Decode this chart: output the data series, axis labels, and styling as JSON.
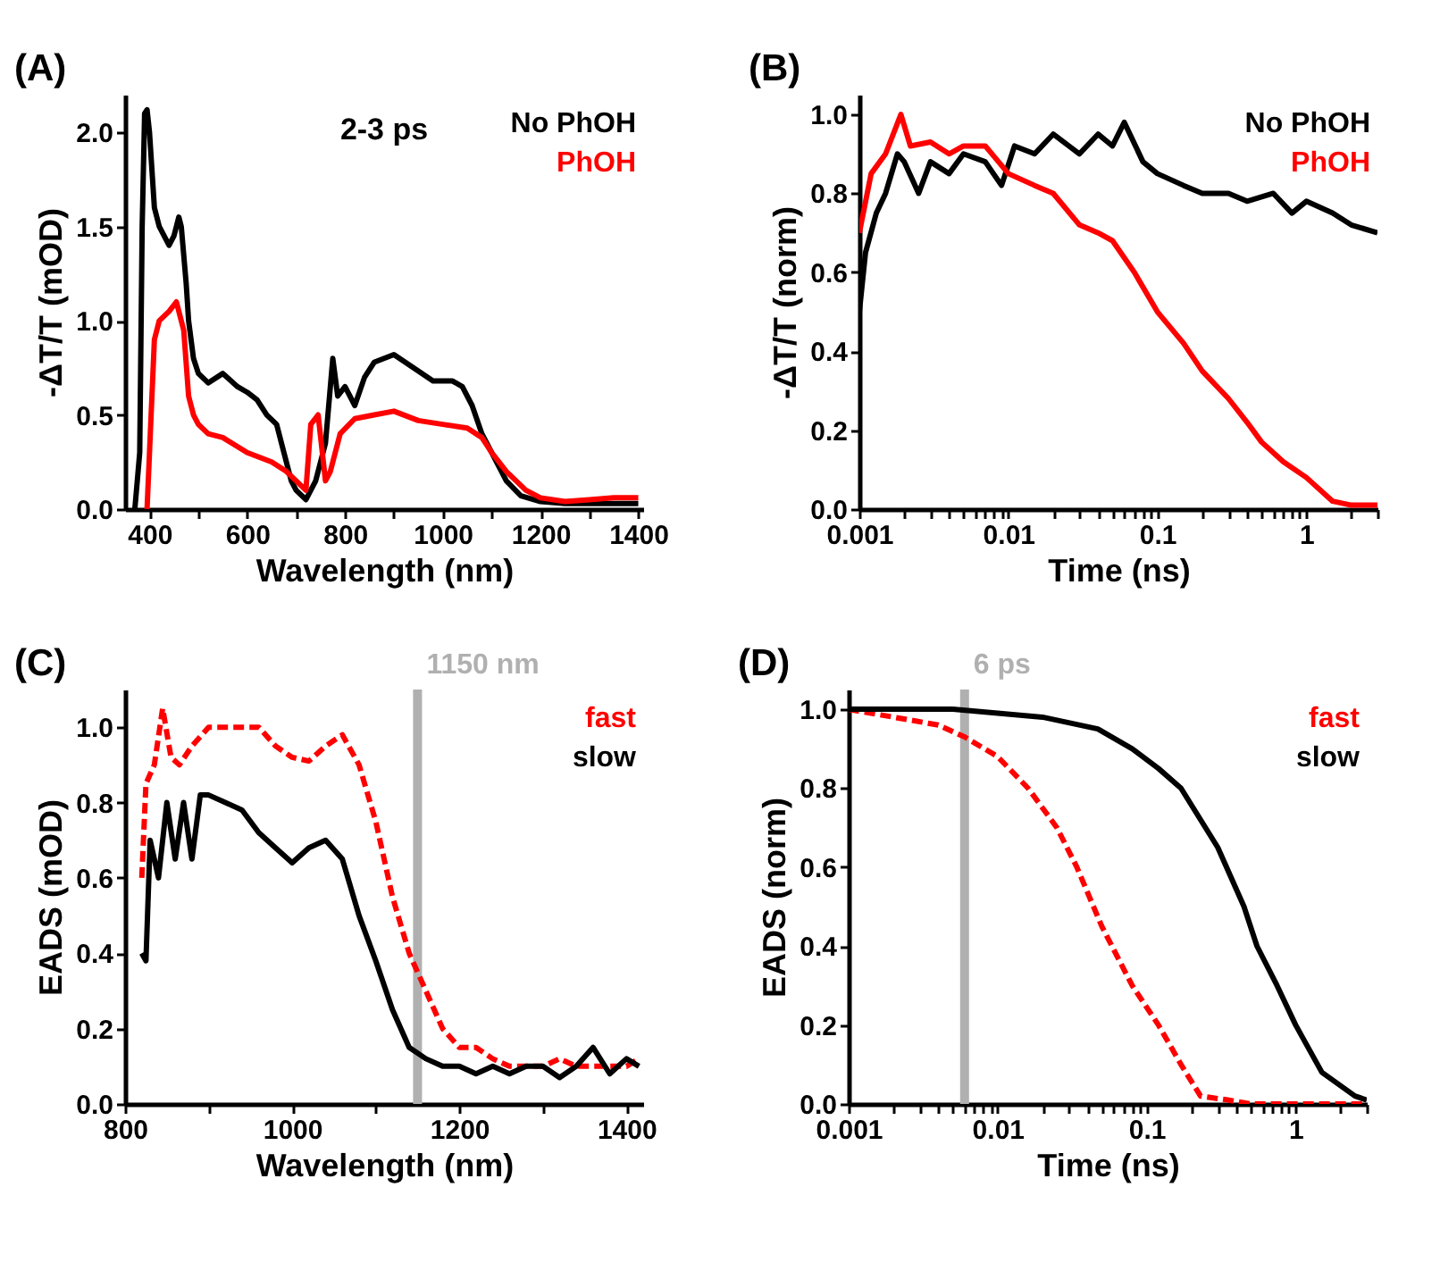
{
  "chart_data": [
    {
      "type": "line",
      "annotations": [
        "(A)",
        "2-3 ps"
      ],
      "xlabel": "Wavelength (nm)",
      "ylabel": "-ΔT/T (mOD)",
      "xlim": [
        350,
        1410
      ],
      "ylim": [
        0,
        2.2
      ],
      "xticks": [
        400,
        {
          "value": 500,
          "label": null
        },
        600,
        {
          "value": 700,
          "label": null
        },
        800,
        {
          "value": 900,
          "label": null
        },
        1000,
        {
          "value": 1100,
          "label": null
        },
        1200,
        {
          "value": 1300,
          "label": null
        },
        1400
      ],
      "yticks": [
        {
          "value": 0,
          "label": "0.0"
        },
        {
          "value": 0.5,
          "label": "0.5"
        },
        {
          "value": 1,
          "label": "1.0"
        },
        {
          "value": 1.5,
          "label": "1.5"
        },
        {
          "value": 2,
          "label": "2.0"
        }
      ],
      "series": [
        {
          "name": "No PhOH",
          "color": "#000000",
          "x": [
            370,
            380,
            385,
            390,
            395,
            400,
            410,
            420,
            430,
            440,
            450,
            460,
            465,
            475,
            480,
            490,
            500,
            520,
            550,
            580,
            600,
            620,
            640,
            660,
            675,
            690,
            700,
            720,
            740,
            760,
            775,
            785,
            800,
            820,
            840,
            860,
            900,
            940,
            980,
            1020,
            1040,
            1060,
            1080,
            1100,
            1130,
            1160,
            1200,
            1250,
            1300,
            1350,
            1400
          ],
          "values": [
            0,
            0.3,
            1.5,
            2.1,
            2.12,
            2.0,
            1.6,
            1.5,
            1.45,
            1.4,
            1.45,
            1.55,
            1.5,
            1.2,
            1.0,
            0.8,
            0.72,
            0.67,
            0.72,
            0.65,
            0.62,
            0.58,
            0.5,
            0.45,
            0.3,
            0.15,
            0.1,
            0.05,
            0.15,
            0.35,
            0.8,
            0.6,
            0.65,
            0.55,
            0.7,
            0.78,
            0.82,
            0.75,
            0.68,
            0.68,
            0.65,
            0.55,
            0.4,
            0.3,
            0.15,
            0.07,
            0.04,
            0.03,
            0.03,
            0.03,
            0.03
          ]
        },
        {
          "name": "PhOH",
          "color": "#ff0000",
          "x": [
            395,
            400,
            410,
            420,
            440,
            455,
            470,
            480,
            490,
            500,
            520,
            550,
            600,
            650,
            680,
            700,
            720,
            730,
            745,
            760,
            770,
            790,
            820,
            860,
            900,
            950,
            1000,
            1050,
            1080,
            1100,
            1130,
            1170,
            1200,
            1250,
            1300,
            1350,
            1400
          ],
          "values": [
            0,
            0.3,
            0.9,
            1.0,
            1.05,
            1.1,
            0.95,
            0.6,
            0.5,
            0.45,
            0.4,
            0.38,
            0.3,
            0.25,
            0.2,
            0.15,
            0.1,
            0.45,
            0.5,
            0.15,
            0.2,
            0.4,
            0.48,
            0.5,
            0.52,
            0.47,
            0.45,
            0.43,
            0.38,
            0.3,
            0.2,
            0.1,
            0.06,
            0.04,
            0.05,
            0.06,
            0.06
          ]
        }
      ]
    },
    {
      "type": "line",
      "annotations": [
        "(B)"
      ],
      "xlabel": "Time (ns)",
      "ylabel": "-ΔT/T (norm)",
      "log": "x",
      "xlim": [
        0.001,
        3
      ],
      "ylim": [
        0,
        1.05
      ],
      "xticks": [
        0.001,
        {
          "value": 0.002,
          "label": null
        },
        {
          "value": 0.003,
          "label": null
        },
        {
          "value": 0.004,
          "label": null
        },
        {
          "value": 0.005,
          "label": null
        },
        {
          "value": 0.006,
          "label": null
        },
        {
          "value": 0.007,
          "label": null
        },
        {
          "value": 0.008,
          "label": null
        },
        {
          "value": 0.009,
          "label": null
        },
        0.01,
        {
          "value": 0.02,
          "label": null
        },
        {
          "value": 0.03,
          "label": null
        },
        {
          "value": 0.04,
          "label": null
        },
        {
          "value": 0.05,
          "label": null
        },
        {
          "value": 0.06,
          "label": null
        },
        {
          "value": 0.07,
          "label": null
        },
        {
          "value": 0.08,
          "label": null
        },
        {
          "value": 0.09,
          "label": null
        },
        0.1,
        {
          "value": 0.2,
          "label": null
        },
        {
          "value": 0.3,
          "label": null
        },
        {
          "value": 0.4,
          "label": null
        },
        {
          "value": 0.5,
          "label": null
        },
        {
          "value": 0.6,
          "label": null
        },
        {
          "value": 0.7,
          "label": null
        },
        {
          "value": 0.8,
          "label": null
        },
        {
          "value": 0.9,
          "label": null
        },
        1,
        {
          "value": 2,
          "label": null
        },
        {
          "value": 3,
          "label": null
        }
      ],
      "yticks": [
        {
          "value": 0,
          "label": "0.0"
        },
        {
          "value": 0.2,
          "label": "0.2"
        },
        {
          "value": 0.4,
          "label": "0.4"
        },
        {
          "value": 0.6,
          "label": "0.6"
        },
        {
          "value": 0.8,
          "label": "0.8"
        },
        {
          "value": 1,
          "label": "1.0"
        }
      ],
      "series": [
        {
          "name": "No PhOH",
          "color": "#000000",
          "x": [
            0.001,
            0.0011,
            0.0013,
            0.0015,
            0.0018,
            0.002,
            0.0025,
            0.003,
            0.004,
            0.005,
            0.007,
            0.009,
            0.011,
            0.015,
            0.02,
            0.03,
            0.04,
            0.05,
            0.06,
            0.08,
            0.1,
            0.15,
            0.2,
            0.3,
            0.4,
            0.6,
            0.8,
            1,
            1.5,
            2,
            3
          ],
          "values": [
            0.5,
            0.65,
            0.75,
            0.8,
            0.9,
            0.88,
            0.8,
            0.88,
            0.85,
            0.9,
            0.88,
            0.82,
            0.92,
            0.9,
            0.95,
            0.9,
            0.95,
            0.92,
            0.98,
            0.88,
            0.85,
            0.82,
            0.8,
            0.8,
            0.78,
            0.8,
            0.75,
            0.78,
            0.75,
            0.72,
            0.7
          ]
        },
        {
          "name": "PhOH",
          "color": "#ff0000",
          "x": [
            0.001,
            0.0012,
            0.0015,
            0.0019,
            0.0022,
            0.003,
            0.004,
            0.005,
            0.007,
            0.01,
            0.015,
            0.02,
            0.03,
            0.04,
            0.05,
            0.07,
            0.1,
            0.15,
            0.2,
            0.3,
            0.4,
            0.5,
            0.7,
            1,
            1.5,
            2,
            3
          ],
          "values": [
            0.7,
            0.85,
            0.9,
            1.0,
            0.92,
            0.93,
            0.9,
            0.92,
            0.92,
            0.85,
            0.82,
            0.8,
            0.72,
            0.7,
            0.68,
            0.6,
            0.5,
            0.42,
            0.35,
            0.28,
            0.22,
            0.17,
            0.12,
            0.08,
            0.02,
            0.01,
            0.01
          ]
        }
      ]
    },
    {
      "type": "line",
      "annotations": [
        "(C)"
      ],
      "xlabel": "Wavelength (nm)",
      "ylabel": "EADS (mOD)",
      "xlim": [
        800,
        1420
      ],
      "ylim": [
        0,
        1.1
      ],
      "xticks": [
        800,
        {
          "value": 900,
          "label": null
        },
        1000,
        {
          "value": 1100,
          "label": null
        },
        1200,
        {
          "value": 1300,
          "label": null
        },
        1400
      ],
      "yticks": [
        {
          "value": 0,
          "label": "0.0"
        },
        {
          "value": 0.2,
          "label": "0.2"
        },
        {
          "value": 0.4,
          "label": "0.4"
        },
        {
          "value": 0.6,
          "label": "0.6"
        },
        {
          "value": 0.8,
          "label": "0.8"
        },
        {
          "value": 1,
          "label": "1.0"
        }
      ],
      "ref_lines": [
        {
          "axis": "x",
          "value": 1150,
          "label": "1150 nm",
          "color": "#b0b0b0"
        }
      ],
      "series": [
        {
          "name": "fast",
          "color": "#ff0000",
          "line_style": "dashed",
          "x": [
            820,
            825,
            835,
            845,
            855,
            865,
            880,
            900,
            940,
            960,
            980,
            1000,
            1020,
            1040,
            1060,
            1080,
            1100,
            1120,
            1140,
            1160,
            1180,
            1200,
            1220,
            1240,
            1260,
            1280,
            1300,
            1320,
            1340,
            1360,
            1380,
            1400,
            1415
          ],
          "values": [
            0.6,
            0.85,
            0.9,
            1.05,
            0.92,
            0.9,
            0.95,
            1.0,
            1.0,
            1.0,
            0.95,
            0.92,
            0.91,
            0.95,
            0.98,
            0.9,
            0.75,
            0.55,
            0.4,
            0.3,
            0.2,
            0.15,
            0.15,
            0.12,
            0.1,
            0.1,
            0.1,
            0.12,
            0.1,
            0.1,
            0.1,
            0.1,
            0.12
          ]
        },
        {
          "name": "slow",
          "color": "#000000",
          "line_style": "solid",
          "x": [
            820,
            825,
            830,
            840,
            850,
            860,
            870,
            880,
            890,
            900,
            920,
            940,
            960,
            980,
            1000,
            1020,
            1040,
            1060,
            1080,
            1100,
            1120,
            1140,
            1160,
            1180,
            1200,
            1220,
            1240,
            1260,
            1280,
            1300,
            1320,
            1340,
            1360,
            1380,
            1400,
            1415
          ],
          "values": [
            0.4,
            0.38,
            0.7,
            0.6,
            0.8,
            0.65,
            0.8,
            0.65,
            0.82,
            0.82,
            0.8,
            0.78,
            0.72,
            0.68,
            0.64,
            0.68,
            0.7,
            0.65,
            0.5,
            0.38,
            0.25,
            0.15,
            0.12,
            0.1,
            0.1,
            0.08,
            0.1,
            0.08,
            0.1,
            0.1,
            0.07,
            0.1,
            0.15,
            0.08,
            0.12,
            0.1
          ]
        }
      ]
    },
    {
      "type": "line",
      "annotations": [
        "(D)"
      ],
      "xlabel": "Time (ns)",
      "ylabel": "EADS (norm)",
      "log": "x",
      "xlim": [
        0.001,
        3
      ],
      "ylim": [
        0,
        1.05
      ],
      "xticks": [
        0.001,
        {
          "value": 0.002,
          "label": null
        },
        {
          "value": 0.003,
          "label": null
        },
        {
          "value": 0.004,
          "label": null
        },
        {
          "value": 0.005,
          "label": null
        },
        {
          "value": 0.006,
          "label": null
        },
        {
          "value": 0.007,
          "label": null
        },
        {
          "value": 0.008,
          "label": null
        },
        {
          "value": 0.009,
          "label": null
        },
        0.01,
        {
          "value": 0.02,
          "label": null
        },
        {
          "value": 0.03,
          "label": null
        },
        {
          "value": 0.04,
          "label": null
        },
        {
          "value": 0.05,
          "label": null
        },
        {
          "value": 0.06,
          "label": null
        },
        {
          "value": 0.07,
          "label": null
        },
        {
          "value": 0.08,
          "label": null
        },
        {
          "value": 0.09,
          "label": null
        },
        0.1,
        {
          "value": 0.2,
          "label": null
        },
        {
          "value": 0.3,
          "label": null
        },
        {
          "value": 0.4,
          "label": null
        },
        {
          "value": 0.5,
          "label": null
        },
        {
          "value": 0.6,
          "label": null
        },
        {
          "value": 0.7,
          "label": null
        },
        {
          "value": 0.8,
          "label": null
        },
        {
          "value": 0.9,
          "label": null
        },
        1,
        {
          "value": 2,
          "label": null
        },
        {
          "value": 3,
          "label": null
        }
      ],
      "yticks": [
        {
          "value": 0,
          "label": "0.0"
        },
        {
          "value": 0.2,
          "label": "0.2"
        },
        {
          "value": 0.4,
          "label": "0.4"
        },
        {
          "value": 0.6,
          "label": "0.6"
        },
        {
          "value": 0.8,
          "label": "0.8"
        },
        {
          "value": 1,
          "label": "1.0"
        }
      ],
      "ref_lines": [
        {
          "axis": "x",
          "value": 0.006,
          "label": "6 ps",
          "color": "#b0b0b0"
        }
      ],
      "series": [
        {
          "name": "fast",
          "color": "#ff0000",
          "line_style": "dashed",
          "x": [
            0.001,
            0.002,
            0.004,
            0.006,
            0.01,
            0.016,
            0.025,
            0.034,
            0.05,
            0.08,
            0.12,
            0.17,
            0.23,
            0.35,
            0.5,
            1,
            3
          ],
          "values": [
            1.0,
            0.98,
            0.96,
            0.93,
            0.88,
            0.8,
            0.7,
            0.6,
            0.45,
            0.3,
            0.2,
            0.1,
            0.02,
            0.01,
            0,
            0,
            0
          ]
        },
        {
          "name": "slow",
          "color": "#000000",
          "line_style": "solid",
          "x": [
            0.001,
            0.005,
            0.01,
            0.02,
            0.047,
            0.08,
            0.12,
            0.17,
            0.3,
            0.45,
            0.55,
            0.75,
            1,
            1.5,
            2.5,
            3
          ],
          "values": [
            1.0,
            1.0,
            0.99,
            0.98,
            0.95,
            0.9,
            0.85,
            0.8,
            0.65,
            0.5,
            0.4,
            0.3,
            0.2,
            0.08,
            0.02,
            0.01
          ]
        }
      ]
    }
  ]
}
